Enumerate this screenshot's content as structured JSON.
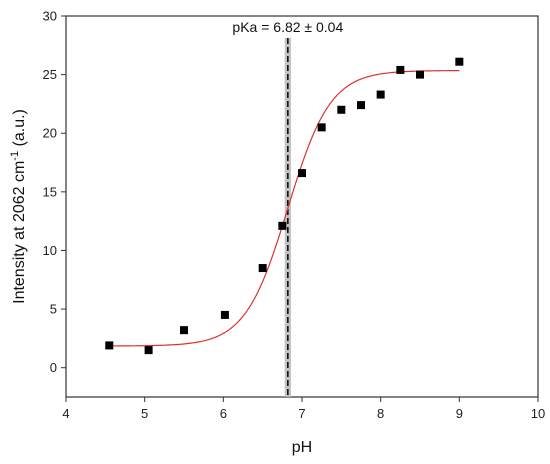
{
  "chart_data": {
    "type": "scatter",
    "xlabel": "pH",
    "ylabel_prefix": "Intensity at 2062 cm",
    "ylabel_sup": "-1",
    "ylabel_suffix": " (a.u.)",
    "xlim": [
      4,
      10
    ],
    "ylim": [
      -2.5,
      30
    ],
    "x_ticks": [
      4,
      5,
      6,
      7,
      8,
      9,
      10
    ],
    "y_ticks": [
      0,
      5,
      10,
      15,
      20,
      25,
      30
    ],
    "grid": false,
    "series": [
      {
        "type": "scatter",
        "marker": "square",
        "color": "#000000",
        "x": [
          4.55,
          5.05,
          5.5,
          6.02,
          6.5,
          6.75,
          7.0,
          7.25,
          7.5,
          7.75,
          8.0,
          8.25,
          8.5,
          9.0
        ],
        "y": [
          1.9,
          1.5,
          3.2,
          4.5,
          8.5,
          12.1,
          16.6,
          20.5,
          22.0,
          22.4,
          23.3,
          25.4,
          25.0,
          26.1
        ]
      }
    ],
    "fit_curve": {
      "type": "sigmoid",
      "color": "#e03030",
      "x_range": [
        4.55,
        9.0
      ],
      "bottom": 1.85,
      "top": 25.35,
      "x0": 6.82,
      "slope": 0.27
    },
    "pka_line": {
      "x": 6.82,
      "uncertainty": 0.04,
      "label": "pKa = 6.82 ± 0.04",
      "band_color": "#b8b8b8",
      "line_color": "#000000"
    }
  }
}
